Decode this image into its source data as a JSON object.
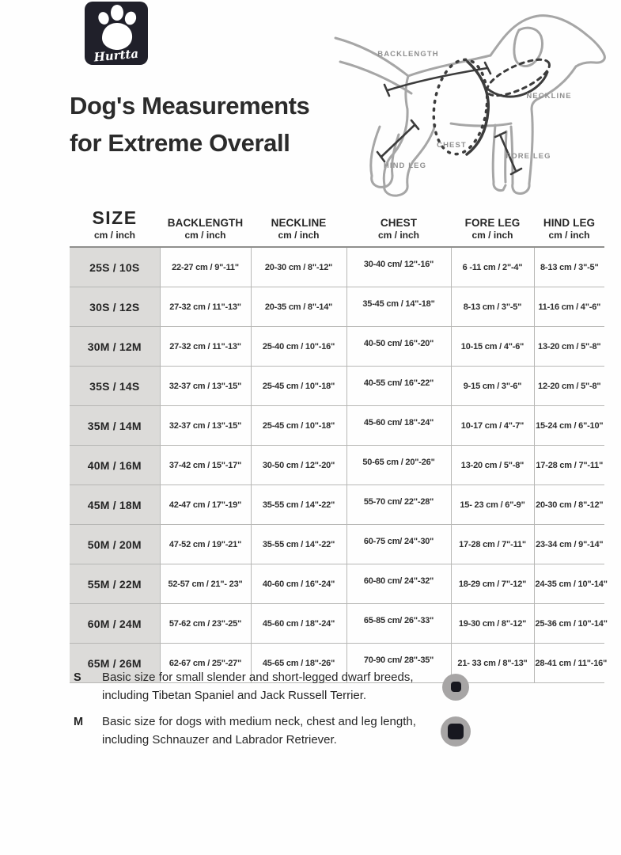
{
  "brand": {
    "name": "Hurtta"
  },
  "title": {
    "line1": "Dog's Measurements",
    "line2": "for Extreme Overall"
  },
  "diagram": {
    "labels": {
      "backlength": "BACKLENGTH",
      "neckline": "NECKLINE",
      "chest": "CHEST",
      "fore_leg": "FORE LEG",
      "hind_leg": "HIND LEG"
    }
  },
  "table": {
    "columns": [
      {
        "label": "SIZE",
        "unit": "cm / inch"
      },
      {
        "label": "BACKLENGTH",
        "unit": "cm / inch"
      },
      {
        "label": "NECKLINE",
        "unit": "cm / inch"
      },
      {
        "label": "CHEST",
        "unit": "cm / inch"
      },
      {
        "label": "FORE LEG",
        "unit": "cm / inch"
      },
      {
        "label": "HIND LEG",
        "unit": "cm / inch"
      }
    ],
    "rows": [
      [
        "25S / 10S",
        "22-27 cm / 9\"-11\"",
        "20-30 cm / 8\"-12\"",
        "30-40 cm/ 12\"-16\"",
        "6 -11 cm / 2\"-4\"",
        "8-13 cm / 3\"-5\""
      ],
      [
        "30S / 12S",
        "27-32 cm / 11\"-13\"",
        "20-35 cm / 8\"-14\"",
        "35-45 cm / 14\"-18\"",
        "8-13 cm / 3\"-5\"",
        "11-16 cm / 4\"-6\""
      ],
      [
        "30M / 12M",
        "27-32 cm / 11\"-13\"",
        "25-40 cm / 10\"-16\"",
        "40-50 cm/ 16\"-20\"",
        "10-15 cm / 4\"-6\"",
        "13-20 cm / 5\"-8\""
      ],
      [
        "35S / 14S",
        "32-37 cm / 13\"-15\"",
        "25-45 cm / 10\"-18\"",
        "40-55 cm/ 16\"-22\"",
        "9-15 cm / 3\"-6\"",
        "12-20 cm / 5\"-8\""
      ],
      [
        "35M / 14M",
        "32-37 cm / 13\"-15\"",
        "25-45 cm / 10\"-18\"",
        "45-60 cm/ 18\"-24\"",
        "10-17 cm / 4\"-7\"",
        "15-24 cm / 6\"-10\""
      ],
      [
        "40M / 16M",
        "37-42 cm / 15\"-17\"",
        "30-50 cm / 12\"-20\"",
        "50-65 cm / 20\"-26\"",
        "13-20 cm / 5\"-8\"",
        "17-28 cm / 7\"-11\""
      ],
      [
        "45M / 18M",
        "42-47 cm / 17\"-19\"",
        "35-55 cm / 14\"-22\"",
        "55-70 cm/ 22\"-28\"",
        "15- 23 cm / 6\"-9\"",
        "20-30 cm / 8\"-12\""
      ],
      [
        "50M / 20M",
        "47-52 cm / 19\"-21\"",
        "35-55 cm / 14\"-22\"",
        "60-75 cm/ 24\"-30\"",
        "17-28 cm / 7\"-11\"",
        "23-34 cm / 9\"-14\""
      ],
      [
        "55M / 22M",
        "52-57 cm / 21\"- 23\"",
        "40-60 cm / 16\"-24\"",
        "60-80 cm/ 24\"-32\"",
        "18-29 cm / 7\"-12\"",
        "24-35 cm / 10\"-14\""
      ],
      [
        "60M / 24M",
        "57-62 cm / 23\"-25\"",
        "45-60 cm / 18\"-24\"",
        "65-85 cm/ 26\"-33\"",
        "19-30 cm / 8\"-12\"",
        "25-36 cm / 10\"-14\""
      ],
      [
        "65M / 26M",
        "62-67 cm / 25\"-27\"",
        "45-65 cm / 18\"-26\"",
        "70-90 cm/ 28\"-35\"",
        "21- 33 cm / 8\"-13\"",
        "28-41 cm / 11\"-16\""
      ]
    ]
  },
  "notes": [
    {
      "key": "S",
      "text": "Basic size for small slender and short-legged dwarf breeds, including Tibetan Spaniel and Jack Russell Terrier.",
      "icon": "size-dot-small"
    },
    {
      "key": "M",
      "text": "Basic size for dogs with medium neck, chest and leg length, including Schnauzer and Labrador Retriever.",
      "icon": "size-dot-medium"
    }
  ],
  "colors": {
    "logo_bg": "#20202a",
    "text": "#2c2c2c",
    "table_line": "#b7b7b5",
    "size_col_bg": "#dcdbd9",
    "diagram_outline": "#a6a6a6",
    "diagram_measure": "#3c3c3c",
    "note_dot_circle": "#a7a5a5",
    "note_dot_square": "#17171f"
  }
}
